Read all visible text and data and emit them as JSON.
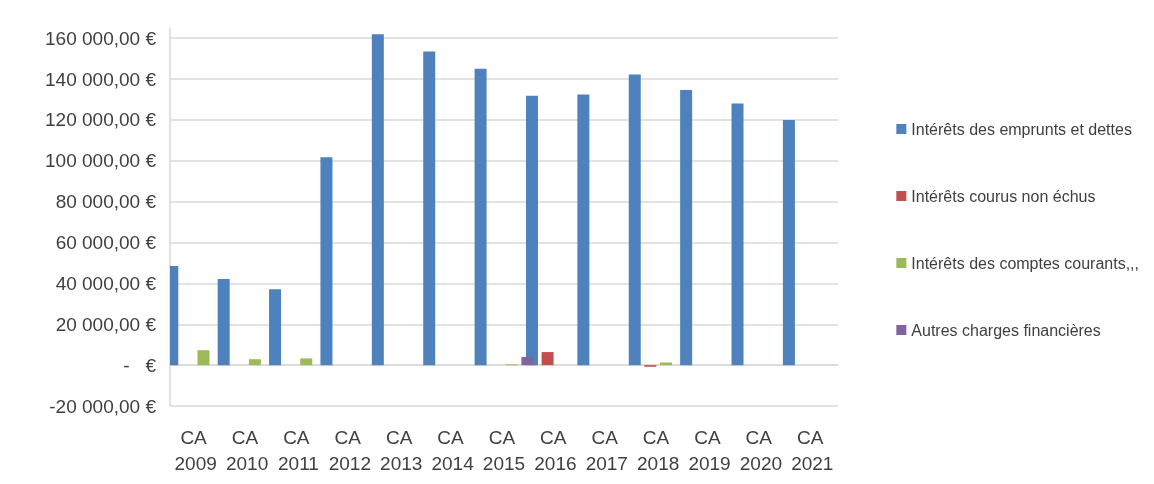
{
  "chart_data": {
    "type": "bar",
    "categories": [
      "CA 2009",
      "CA 2010",
      "CA 2011",
      "CA 2012",
      "CA 2013",
      "CA 2014",
      "CA 2015",
      "CA 2016",
      "CA 2017",
      "CA 2018",
      "CA 2019",
      "CA 2020",
      "CA 2021"
    ],
    "series": [
      {
        "name": "Intérêts des emprunts et dettes",
        "color": "#4f81bd",
        "values": [
          48500,
          42100,
          37100,
          101700,
          162000,
          153500,
          145000,
          131900,
          132400,
          142300,
          134700,
          128000,
          120000
        ]
      },
      {
        "name": "Intérêts courus non échus",
        "color": "#c0504d",
        "values": [
          null,
          null,
          null,
          null,
          null,
          null,
          null,
          6400,
          null,
          -800,
          null,
          null,
          null
        ]
      },
      {
        "name": "Intérêts des comptes courants,,,",
        "color": "#9bbb59",
        "values": [
          7300,
          2900,
          3300,
          null,
          null,
          null,
          400,
          null,
          null,
          1300,
          null,
          null,
          null
        ]
      },
      {
        "name": "Autres charges financières",
        "color": "#8064a2",
        "values": [
          null,
          null,
          null,
          null,
          null,
          null,
          4000,
          null,
          null,
          null,
          null,
          null,
          null
        ]
      }
    ],
    "ylim": [
      -20000,
      165000
    ],
    "yticks": [
      {
        "value": -20000,
        "label": "-20 000,00 €"
      },
      {
        "value": 0,
        "label": "-   €"
      },
      {
        "value": 20000,
        "label": "20 000,00 €"
      },
      {
        "value": 40000,
        "label": "40 000,00 €"
      },
      {
        "value": 60000,
        "label": "60 000,00 €"
      },
      {
        "value": 80000,
        "label": "80 000,00 €"
      },
      {
        "value": 100000,
        "label": "100 000,00 €"
      },
      {
        "value": 120000,
        "label": "120 000,00 €"
      },
      {
        "value": 140000,
        "label": "140 000,00 €"
      },
      {
        "value": 160000,
        "label": "160 000,00 €"
      }
    ],
    "grid": "y",
    "legend": "right"
  }
}
